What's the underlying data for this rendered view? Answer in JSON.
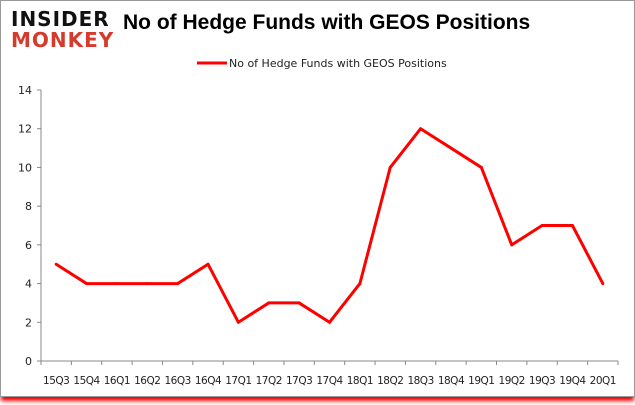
{
  "logo": {
    "line1": "INSIDER",
    "line2": "MONKEY"
  },
  "chart_data": {
    "type": "line",
    "title": "No of Hedge Funds with GEOS Positions",
    "legend_position": "top",
    "categories": [
      "15Q3",
      "15Q4",
      "16Q1",
      "16Q2",
      "16Q3",
      "16Q4",
      "17Q1",
      "17Q2",
      "17Q3",
      "17Q4",
      "18Q1",
      "18Q2",
      "18Q3",
      "18Q4",
      "19Q1",
      "19Q2",
      "19Q3",
      "19Q4",
      "20Q1"
    ],
    "series": [
      {
        "name": "No of Hedge Funds with GEOS Positions",
        "color": "#ff0000",
        "values": [
          5,
          4,
          4,
          4,
          4,
          5,
          2,
          3,
          3,
          2,
          4,
          10,
          12,
          11,
          10,
          6,
          7,
          7,
          4
        ]
      }
    ],
    "ylim": [
      0,
      14
    ],
    "yticks": [
      0,
      2,
      4,
      6,
      8,
      10,
      12,
      14
    ],
    "grid": false,
    "xlabel": "",
    "ylabel": ""
  }
}
